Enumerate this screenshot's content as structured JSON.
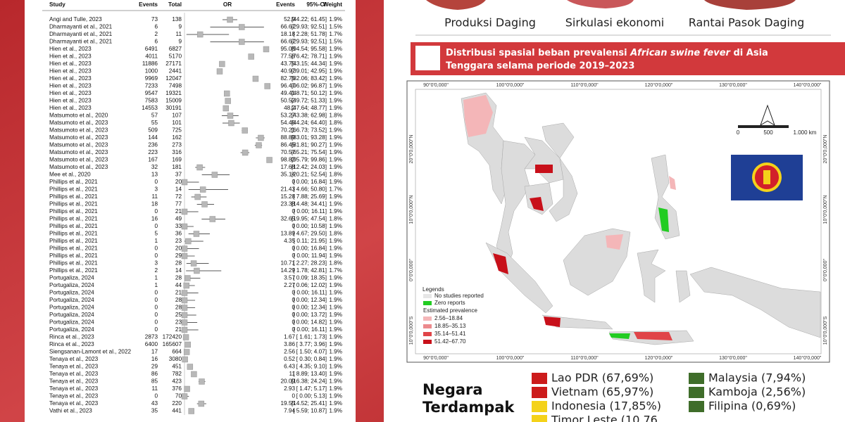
{
  "forest_plot": {
    "headers": {
      "study": "Study",
      "events": "Events",
      "total": "Total",
      "or": "OR",
      "events_pct": "Events",
      "ci": "95%-CI",
      "weight": "Weight"
    },
    "xlim": [
      0,
      100
    ],
    "rows": [
      {
        "study": "Angi and Tulle, 2023",
        "events": 73,
        "total": 138,
        "estimate": 52.9,
        "ci": "[44.22; 61.45]",
        "ci_low": 44.22,
        "ci_high": 61.45,
        "weight": "1.9%"
      },
      {
        "study": "Dharmayanti et al., 2021",
        "events": 6,
        "total": 9,
        "estimate": 66.67,
        "ci": "[29.93; 92.51]",
        "ci_low": 29.93,
        "ci_high": 92.51,
        "weight": "1.5%"
      },
      {
        "study": "Dharmayanti et al., 2021",
        "events": 2,
        "total": 11,
        "estimate": 18.18,
        "ci": "[ 2.28; 51.78]",
        "ci_low": 2.28,
        "ci_high": 51.78,
        "weight": "1.7%"
      },
      {
        "study": "Dharmayanti et al., 2021",
        "events": 6,
        "total": 9,
        "estimate": 66.67,
        "ci": "[29.93; 92.51]",
        "ci_low": 29.93,
        "ci_high": 92.51,
        "weight": "1.5%"
      },
      {
        "study": "Hien et al., 2023",
        "events": 6491,
        "total": 6827,
        "estimate": 95.08,
        "ci": "[94.54; 95.58]",
        "ci_low": 94.54,
        "ci_high": 95.58,
        "weight": "1.9%"
      },
      {
        "study": "Hien et al., 2023",
        "events": 4011,
        "total": 5170,
        "estimate": 77.58,
        "ci": "[76.42; 78.71]",
        "ci_low": 76.42,
        "ci_high": 78.71,
        "weight": "1.9%"
      },
      {
        "study": "Hien et al., 2023",
        "events": 11886,
        "total": 27171,
        "estimate": 43.75,
        "ci": "[43.15; 44.34]",
        "ci_low": 43.15,
        "ci_high": 44.34,
        "weight": "1.9%"
      },
      {
        "study": "Hien et al., 2023",
        "events": 1000,
        "total": 2441,
        "estimate": 40.97,
        "ci": "[39.01; 42.95]",
        "ci_low": 39.01,
        "ci_high": 42.95,
        "weight": "1.9%"
      },
      {
        "study": "Hien et al., 2023",
        "events": 9969,
        "total": 12047,
        "estimate": 82.75,
        "ci": "[82.06; 83.42]",
        "ci_low": 82.06,
        "ci_high": 83.42,
        "weight": "1.9%"
      },
      {
        "study": "Hien et al., 2023",
        "events": 7233,
        "total": 7498,
        "estimate": 96.47,
        "ci": "[96.02; 96.87]",
        "ci_low": 96.02,
        "ci_high": 96.87,
        "weight": "1.9%"
      },
      {
        "study": "Hien et al., 2023",
        "events": 9547,
        "total": 19321,
        "estimate": 49.41,
        "ci": "[48.71; 50.12]",
        "ci_low": 48.71,
        "ci_high": 50.12,
        "weight": "1.9%"
      },
      {
        "study": "Hien et al., 2023",
        "events": 7583,
        "total": 15009,
        "estimate": 50.52,
        "ci": "[49.72; 51.33]",
        "ci_low": 49.72,
        "ci_high": 51.33,
        "weight": "1.9%"
      },
      {
        "study": "Hien et al., 2023",
        "events": 14553,
        "total": 30191,
        "estimate": 48.2,
        "ci": "[47.64; 48.77]",
        "ci_low": 47.64,
        "ci_high": 48.77,
        "weight": "1.9%"
      },
      {
        "study": "Matsumoto et al., 2020",
        "events": 57,
        "total": 107,
        "estimate": 53.27,
        "ci": "[43.38; 62.98]",
        "ci_low": 43.38,
        "ci_high": 62.98,
        "weight": "1.8%"
      },
      {
        "study": "Matsumoto et al., 2023",
        "events": 55,
        "total": 101,
        "estimate": 54.46,
        "ci": "[44.24; 64.40]",
        "ci_low": 44.24,
        "ci_high": 64.4,
        "weight": "1.8%"
      },
      {
        "study": "Matsumoto et al., 2023",
        "events": 509,
        "total": 725,
        "estimate": 70.21,
        "ci": "[66.73; 73.52]",
        "ci_low": 66.73,
        "ci_high": 73.52,
        "weight": "1.9%"
      },
      {
        "study": "Matsumoto et al., 2023",
        "events": 144,
        "total": 162,
        "estimate": 88.89,
        "ci": "[83.01; 93.28]",
        "ci_low": 83.01,
        "ci_high": 93.28,
        "weight": "1.9%"
      },
      {
        "study": "Matsumoto et al., 2023",
        "events": 236,
        "total": 273,
        "estimate": 86.45,
        "ci": "[81.81; 90.27]",
        "ci_low": 81.81,
        "ci_high": 90.27,
        "weight": "1.9%"
      },
      {
        "study": "Matsumoto et al., 2023",
        "events": 223,
        "total": 316,
        "estimate": 70.57,
        "ci": "[65.21; 75.54]",
        "ci_low": 65.21,
        "ci_high": 75.54,
        "weight": "1.9%"
      },
      {
        "study": "Matsumoto et al., 2023",
        "events": 167,
        "total": 169,
        "estimate": 98.82,
        "ci": "[95.79; 99.86]",
        "ci_low": 95.79,
        "ci_high": 99.86,
        "weight": "1.9%"
      },
      {
        "study": "Matsumoto et al., 2023",
        "events": 32,
        "total": 181,
        "estimate": 17.68,
        "ci": "[12.42; 24.03]",
        "ci_low": 12.42,
        "ci_high": 24.03,
        "weight": "1.9%"
      },
      {
        "study": "Mee et al., 2020",
        "events": 13,
        "total": 37,
        "estimate": 35.14,
        "ci": "[20.21; 52.54]",
        "ci_low": 20.21,
        "ci_high": 52.54,
        "weight": "1.8%"
      },
      {
        "study": "Phillips et al., 2021",
        "events": 0,
        "total": 20,
        "estimate": 0.0,
        "ci": "[ 0.00; 16.84]",
        "ci_low": 0.0,
        "ci_high": 16.84,
        "weight": "1.9%"
      },
      {
        "study": "Phillips et al., 2021",
        "events": 3,
        "total": 14,
        "estimate": 21.43,
        "ci": "[ 4.66; 50.80]",
        "ci_low": 4.66,
        "ci_high": 50.8,
        "weight": "1.7%"
      },
      {
        "study": "Phillips et al., 2021",
        "events": 11,
        "total": 72,
        "estimate": 15.28,
        "ci": "[ 7.88; 25.69]",
        "ci_low": 7.88,
        "ci_high": 25.69,
        "weight": "1.9%"
      },
      {
        "study": "Phillips et al., 2021",
        "events": 18,
        "total": 77,
        "estimate": 23.38,
        "ci": "[14.48; 34.41]",
        "ci_low": 14.48,
        "ci_high": 34.41,
        "weight": "1.9%"
      },
      {
        "study": "Phillips et al., 2021",
        "events": 0,
        "total": 21,
        "estimate": 0.0,
        "ci": "[ 0.00; 16.11]",
        "ci_low": 0.0,
        "ci_high": 16.11,
        "weight": "1.9%"
      },
      {
        "study": "Phillips et al., 2021",
        "events": 16,
        "total": 49,
        "estimate": 32.65,
        "ci": "[19.95; 47.54]",
        "ci_low": 19.95,
        "ci_high": 47.54,
        "weight": "1.8%"
      },
      {
        "study": "Phillips et al., 2021",
        "events": 0,
        "total": 33,
        "estimate": 0.0,
        "ci": "[ 0.00; 10.58]",
        "ci_low": 0.0,
        "ci_high": 10.58,
        "weight": "1.9%"
      },
      {
        "study": "Phillips et al., 2021",
        "events": 5,
        "total": 36,
        "estimate": 13.89,
        "ci": "[ 4.67; 29.50]",
        "ci_low": 4.67,
        "ci_high": 29.5,
        "weight": "1.8%"
      },
      {
        "study": "Phillips et al., 2021",
        "events": 1,
        "total": 23,
        "estimate": 4.35,
        "ci": "[ 0.11; 21.95]",
        "ci_low": 0.11,
        "ci_high": 21.95,
        "weight": "1.9%"
      },
      {
        "study": "Phillips et al., 2021",
        "events": 0,
        "total": 20,
        "estimate": 0.0,
        "ci": "[ 0.00; 16.84]",
        "ci_low": 0.0,
        "ci_high": 16.84,
        "weight": "1.9%"
      },
      {
        "study": "Phillips et al., 2021",
        "events": 0,
        "total": 29,
        "estimate": 0.0,
        "ci": "[ 0.00; 11.94]",
        "ci_low": 0.0,
        "ci_high": 11.94,
        "weight": "1.9%"
      },
      {
        "study": "Phillips et al., 2021",
        "events": 3,
        "total": 28,
        "estimate": 10.71,
        "ci": "[ 2.27; 28.23]",
        "ci_low": 2.27,
        "ci_high": 28.23,
        "weight": "1.8%"
      },
      {
        "study": "Phillips et al., 2021",
        "events": 2,
        "total": 14,
        "estimate": 14.29,
        "ci": "[ 1.78; 42.81]",
        "ci_low": 1.78,
        "ci_high": 42.81,
        "weight": "1.7%"
      },
      {
        "study": "Portugaliza, 2024",
        "events": 1,
        "total": 28,
        "estimate": 3.57,
        "ci": "[ 0.09; 18.35]",
        "ci_low": 0.09,
        "ci_high": 18.35,
        "weight": "1.9%"
      },
      {
        "study": "Portugaliza, 2024",
        "events": 1,
        "total": 44,
        "estimate": 2.27,
        "ci": "[ 0.06; 12.02]",
        "ci_low": 0.06,
        "ci_high": 12.02,
        "weight": "1.9%"
      },
      {
        "study": "Portugaliza, 2024",
        "events": 0,
        "total": 21,
        "estimate": 0.0,
        "ci": "[ 0.00; 16.11]",
        "ci_low": 0.0,
        "ci_high": 16.11,
        "weight": "1.9%"
      },
      {
        "study": "Portugaliza, 2024",
        "events": 0,
        "total": 28,
        "estimate": 0.0,
        "ci": "[ 0.00; 12.34]",
        "ci_low": 0.0,
        "ci_high": 12.34,
        "weight": "1.9%"
      },
      {
        "study": "Portugaliza, 2024",
        "events": 0,
        "total": 28,
        "estimate": 0.0,
        "ci": "[ 0.00; 12.34]",
        "ci_low": 0.0,
        "ci_high": 12.34,
        "weight": "1.9%"
      },
      {
        "study": "Portugaliza, 2024",
        "events": 0,
        "total": 25,
        "estimate": 0.0,
        "ci": "[ 0.00; 13.72]",
        "ci_low": 0.0,
        "ci_high": 13.72,
        "weight": "1.9%"
      },
      {
        "study": "Portugaliza, 2024",
        "events": 0,
        "total": 23,
        "estimate": 0.0,
        "ci": "[ 0.00; 14.82]",
        "ci_low": 0.0,
        "ci_high": 14.82,
        "weight": "1.9%"
      },
      {
        "study": "Portugaliza, 2024",
        "events": 0,
        "total": 21,
        "estimate": 0.0,
        "ci": "[ 0.00; 16.11]",
        "ci_low": 0.0,
        "ci_high": 16.11,
        "weight": "1.9%"
      },
      {
        "study": "Rinca et al., 2023",
        "events": 2873,
        "total": 172420,
        "estimate": 1.67,
        "ci": "[ 1.61; 1.73]",
        "ci_low": 1.61,
        "ci_high": 1.73,
        "weight": "1.9%"
      },
      {
        "study": "Rinca et al., 2023",
        "events": 6400,
        "total": 165607,
        "estimate": 3.86,
        "ci": "[ 3.77; 3.96]",
        "ci_low": 3.77,
        "ci_high": 3.96,
        "weight": "1.9%"
      },
      {
        "study": "Siengsanan-Lamont et al., 2022",
        "events": 17,
        "total": 664,
        "estimate": 2.56,
        "ci": "[ 1.50; 4.07]",
        "ci_low": 1.5,
        "ci_high": 4.07,
        "weight": "1.9%"
      },
      {
        "study": "Tenaya et al., 2023",
        "events": 16,
        "total": 3080,
        "estimate": 0.52,
        "ci": "[ 0.30; 0.84]",
        "ci_low": 0.3,
        "ci_high": 0.84,
        "weight": "1.9%"
      },
      {
        "study": "Tenaya et al., 2023",
        "events": 29,
        "total": 451,
        "estimate": 6.43,
        "ci": "[ 4.35; 9.10]",
        "ci_low": 4.35,
        "ci_high": 9.1,
        "weight": "1.9%"
      },
      {
        "study": "Tenaya et al., 2023",
        "events": 86,
        "total": 782,
        "estimate": 11.0,
        "ci": "[ 8.89; 13.40]",
        "ci_low": 8.89,
        "ci_high": 13.4,
        "weight": "1.9%"
      },
      {
        "study": "Tenaya et al., 2023",
        "events": 85,
        "total": 423,
        "estimate": 20.09,
        "ci": "[16.38; 24.24]",
        "ci_low": 16.38,
        "ci_high": 24.24,
        "weight": "1.9%"
      },
      {
        "study": "Tenaya et al., 2023",
        "events": 11,
        "total": 376,
        "estimate": 2.93,
        "ci": "[ 1.47; 5.17]",
        "ci_low": 1.47,
        "ci_high": 5.17,
        "weight": "1.9%"
      },
      {
        "study": "Tenaya et al., 2023",
        "events": 0,
        "total": 70,
        "estimate": 0.0,
        "ci": "[ 0.00; 5.13]",
        "ci_low": 0.0,
        "ci_high": 5.13,
        "weight": "1.9%"
      },
      {
        "study": "Tenaya et al., 2023",
        "events": 43,
        "total": 220,
        "estimate": 19.55,
        "ci": "[14.52; 25.41]",
        "ci_low": 14.52,
        "ci_high": 25.41,
        "weight": "1.9%"
      },
      {
        "study": "Vathi et al., 2023",
        "events": 35,
        "total": 441,
        "estimate": 7.94,
        "ci": "[ 5.59; 10.87]",
        "ci_low": 5.59,
        "ci_high": 10.87,
        "weight": "1.9%"
      }
    ]
  },
  "captions": [
    "Produksi Daging",
    "Sirkulasi ekonomi",
    "Rantai Pasok Daging"
  ],
  "map_title": {
    "line1_parts": [
      "Distribusi spasial beban prevalensi ",
      "African swine fever",
      " di Asia"
    ],
    "line2": "Tenggara selama periode 2019–2023"
  },
  "map": {
    "lon_labels": [
      "90°0'0,000\"",
      "100°0'0,000\"",
      "110°0'0,000\"",
      "120°0'0,000\"",
      "130°0'0,000\"",
      "140°0'0,000\""
    ],
    "lat_labels": [
      "20°0'0,000\"N",
      "10°0'0,000\"N",
      "0°0'0,000\"",
      "10°0'0,000\"S"
    ],
    "scale_labels": [
      "0",
      "500",
      "1.000 km"
    ],
    "legend": {
      "title": "Legends",
      "no_studies": "No studies reported",
      "zero": "Zero reports",
      "estimated": "Estimated prevalence",
      "classes": [
        {
          "label": "2.56–18.84",
          "color": "#f4b6b8"
        },
        {
          "label": "18.85–35.13",
          "color": "#ec8a8d"
        },
        {
          "label": "35.14–51.41",
          "color": "#e04448"
        },
        {
          "label": "51.42–67.70",
          "color": "#c8101a"
        }
      ]
    }
  },
  "affected": {
    "title_line1": "Negara",
    "title_line2": "Terdampak",
    "countries": [
      {
        "label": "Lao PDR (67,69%)",
        "color": "#cc1b1b"
      },
      {
        "label": "Vietnam (65,97%)",
        "color": "#cc1b1b"
      },
      {
        "label": "Indonesia (17,85%)",
        "color": "#f4d21a"
      },
      {
        "label": "Timor Leste (10,76",
        "color": "#f4d21a"
      },
      {
        "label": "Malaysia (7,94%)",
        "color": "#3f6d2a"
      },
      {
        "label": "Kamboja (2,56%)",
        "color": "#3f6d2a"
      },
      {
        "label": "Filipina (0,69%)",
        "color": "#3f6d2a"
      }
    ]
  }
}
